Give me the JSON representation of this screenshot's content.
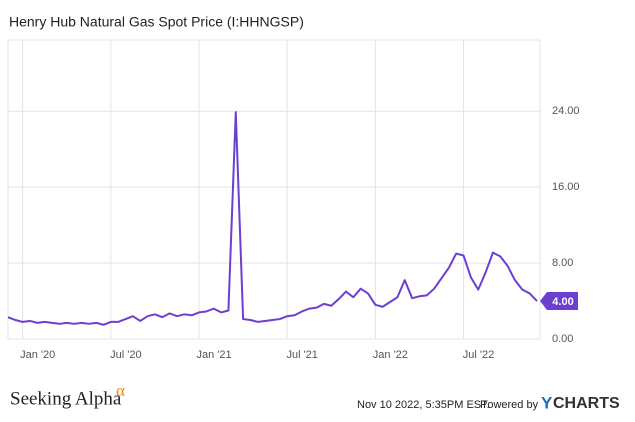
{
  "chart_data": {
    "type": "line",
    "title": "Henry Hub Natural Gas Spot Price (I:HHNGSP)",
    "categories": [
      null,
      null,
      "Jan '20",
      null,
      null,
      null,
      null,
      null,
      null,
      null,
      null,
      null,
      null,
      null,
      "Jul '20",
      null,
      null,
      null,
      null,
      null,
      null,
      null,
      null,
      null,
      null,
      null,
      "Jan '21",
      null,
      null,
      null,
      null,
      null,
      null,
      null,
      null,
      null,
      null,
      null,
      "Jul '21",
      null,
      null,
      null,
      null,
      null,
      null,
      null,
      null,
      null,
      null,
      null,
      "Jan '22",
      null,
      null,
      null,
      null,
      null,
      null,
      null,
      null,
      null,
      null,
      null,
      "Jul '22",
      null,
      null,
      null,
      null,
      null,
      null,
      null,
      null,
      null,
      null
    ],
    "series": [
      {
        "name": "Henry Hub Natural Gas Spot Price",
        "color": "#6c3fd1",
        "values": [
          2.3,
          2.0,
          1.8,
          1.9,
          1.7,
          1.8,
          1.7,
          1.6,
          1.7,
          1.6,
          1.7,
          1.6,
          1.7,
          1.5,
          1.8,
          1.8,
          2.1,
          2.4,
          1.9,
          2.4,
          2.6,
          2.3,
          2.7,
          2.4,
          2.6,
          2.5,
          2.8,
          2.9,
          3.2,
          2.8,
          3.0,
          23.9,
          2.1,
          2.0,
          1.8,
          1.9,
          2.0,
          2.1,
          2.4,
          2.5,
          2.9,
          3.2,
          3.3,
          3.7,
          3.5,
          4.2,
          5.0,
          4.4,
          5.3,
          4.8,
          3.6,
          3.4,
          3.9,
          4.4,
          6.2,
          4.3,
          4.5,
          4.6,
          5.3,
          6.4,
          7.5,
          9.0,
          8.8,
          6.5,
          5.2,
          7.0,
          9.1,
          8.7,
          7.7,
          6.2,
          5.2,
          4.8,
          4.0
        ],
        "value_labels": [
          null,
          null,
          null,
          null,
          null,
          null,
          null,
          null,
          null,
          null,
          null,
          null,
          null,
          null,
          null,
          null,
          null,
          null,
          null,
          null,
          null,
          null,
          null,
          null,
          null,
          null,
          null,
          null,
          null,
          null,
          null,
          null,
          null,
          null,
          null,
          null,
          null,
          null,
          null,
          null,
          null,
          null,
          null,
          null,
          null,
          null,
          null,
          null,
          null,
          null,
          null,
          null,
          null,
          null,
          null,
          null,
          null,
          null,
          null,
          null,
          null,
          null,
          null,
          null,
          null,
          null,
          null,
          null,
          null,
          null,
          null,
          null,
          "4.00"
        ]
      }
    ],
    "ylim": [
      0,
      31.5
    ],
    "yticks": [
      {
        "value": 0,
        "label": "0.00"
      },
      {
        "value": 8,
        "label": "8.00"
      },
      {
        "value": 16,
        "label": "16.00"
      },
      {
        "value": 24,
        "label": "24.00"
      }
    ],
    "grid": true
  },
  "footer": {
    "brand": "Seeking Alpha",
    "brand_mark": "α",
    "timestamp": "Nov 10 2022, 5:35PM EST.",
    "powered": "Powered by",
    "logo_y": "Y",
    "logo_rest": "CHARTS"
  }
}
